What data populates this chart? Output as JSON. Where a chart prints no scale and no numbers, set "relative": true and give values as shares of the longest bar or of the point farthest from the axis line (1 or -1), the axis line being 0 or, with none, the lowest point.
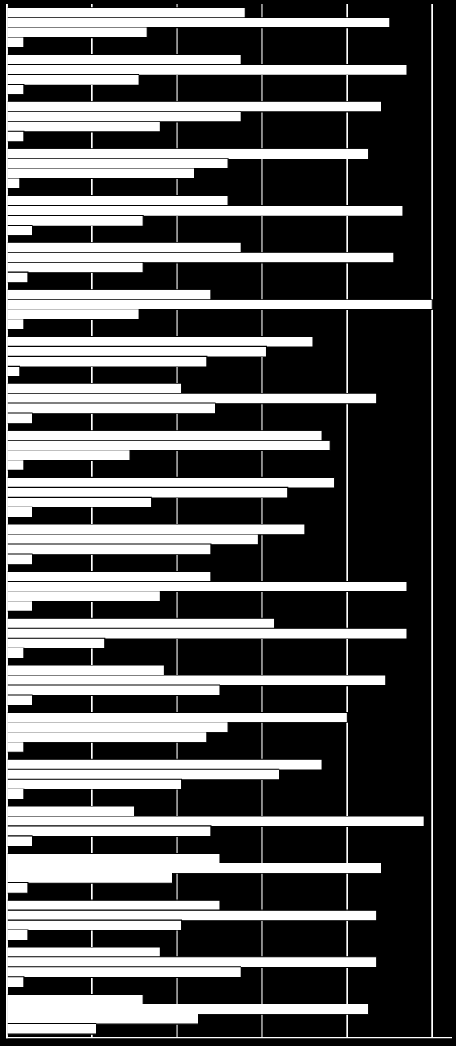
{
  "chart_data": {
    "type": "bar",
    "orientation": "horizontal",
    "relative": true,
    "grid": "x",
    "categories": [
      null,
      null,
      null,
      null,
      null,
      null,
      null,
      null,
      null,
      null,
      null,
      null,
      null,
      null,
      null,
      null,
      null,
      null,
      null,
      null,
      null,
      null
    ],
    "series": [
      {
        "color": "#ffffff",
        "values": [
          0.56,
          0.55,
          0.88,
          0.85,
          0.52,
          0.55,
          0.48,
          0.72,
          0.41,
          0.74,
          0.77,
          0.7,
          0.48,
          0.63,
          0.37,
          0.8,
          0.74,
          0.3,
          0.5,
          0.5,
          0.36,
          0.32
        ]
      },
      {
        "color": "#ffffff",
        "values": [
          0.9,
          0.94,
          0.55,
          0.52,
          0.93,
          0.91,
          1.0,
          0.61,
          0.87,
          0.76,
          0.66,
          0.59,
          0.94,
          0.94,
          0.89,
          0.52,
          0.64,
          0.98,
          0.88,
          0.87,
          0.87,
          0.85
        ]
      },
      {
        "color": "#ffffff",
        "values": [
          0.33,
          0.31,
          0.36,
          0.44,
          0.32,
          0.32,
          0.31,
          0.47,
          0.49,
          0.29,
          0.34,
          0.48,
          0.36,
          0.23,
          0.5,
          0.47,
          0.41,
          0.48,
          0.39,
          0.41,
          0.55,
          0.45
        ]
      },
      {
        "color": "#ffffff",
        "values": [
          0.04,
          0.04,
          0.04,
          0.03,
          0.06,
          0.05,
          0.04,
          0.03,
          0.06,
          0.04,
          0.06,
          0.06,
          0.06,
          0.04,
          0.06,
          0.04,
          0.04,
          0.06,
          0.05,
          0.05,
          0.04,
          0.21
        ]
      }
    ]
  }
}
